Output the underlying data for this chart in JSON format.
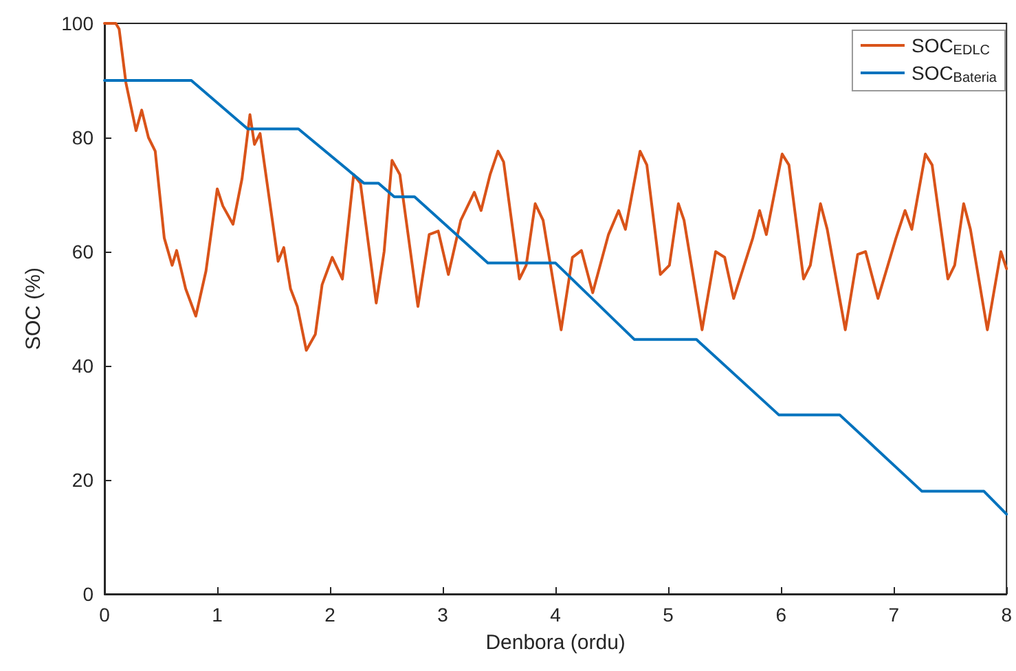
{
  "chart_data": {
    "type": "line",
    "xlabel": "Denbora (ordu)",
    "ylabel": "SOC (%)",
    "xlim": [
      0,
      8
    ],
    "xticks": [
      0,
      1,
      2,
      3,
      4,
      5,
      6,
      7,
      8
    ],
    "ylim": [
      0,
      100
    ],
    "yticks": [
      0,
      20,
      40,
      60,
      80,
      100
    ],
    "grid": false,
    "legend": "top right",
    "marker": "none",
    "line_style": "solid",
    "series": [
      {
        "name": "SOC$_{EDLC}$",
        "color": "#d95319",
        "x": [
          0,
          0.1,
          0.13,
          0.19,
          0.28,
          0.33,
          0.39,
          0.45,
          0.53,
          0.6,
          0.64,
          0.72,
          0.81,
          0.9,
          1.0,
          1.05,
          1.14,
          1.22,
          1.29,
          1.33,
          1.38,
          1.54,
          1.59,
          1.65,
          1.71,
          1.79,
          1.87,
          1.93,
          2.02,
          2.11,
          2.21,
          2.27,
          2.41,
          2.48,
          2.55,
          2.62,
          2.78,
          2.88,
          2.96,
          3.05,
          3.16,
          3.28,
          3.34,
          3.42,
          3.49,
          3.54,
          3.68,
          3.74,
          3.82,
          3.89,
          4.05,
          4.15,
          4.23,
          4.33,
          4.47,
          4.56,
          4.62,
          4.75,
          4.81,
          4.93,
          5.01,
          5.09,
          5.14,
          5.3,
          5.42,
          5.5,
          5.58,
          5.75,
          5.81,
          5.87,
          6.01,
          6.07,
          6.2,
          6.26,
          6.35,
          6.41,
          6.57,
          6.68,
          6.75,
          6.86,
          7.02,
          7.1,
          7.16,
          7.28,
          7.34,
          7.48,
          7.54,
          7.62,
          7.68,
          7.83,
          7.95,
          8.0
        ],
        "values": [
          100,
          100,
          99,
          89.6,
          81.2,
          84.8,
          80,
          77.6,
          62.4,
          57.6,
          60.2,
          53.5,
          48.7,
          56.6,
          71,
          68,
          64.8,
          72.8,
          84,
          78.8,
          80.7,
          58.3,
          60.7,
          53.5,
          50.4,
          42.7,
          45.5,
          54.2,
          59,
          55.2,
          73.5,
          72,
          51,
          60,
          76,
          73.5,
          50.4,
          63,
          63.6,
          56,
          65.5,
          70.4,
          67.2,
          73.5,
          77.6,
          75.7,
          55.2,
          57.6,
          68.4,
          65.5,
          46.3,
          59,
          60.2,
          52.8,
          63,
          67.2,
          63.9,
          77.6,
          75.2,
          56,
          57.6,
          68.4,
          65.5,
          46.3,
          60,
          59,
          51.8,
          62.4,
          67.2,
          63,
          77.1,
          75.2,
          55.2,
          57.6,
          68.4,
          63.9,
          46.3,
          59.5,
          60,
          51.8,
          62.4,
          67.2,
          63.9,
          77.1,
          75.2,
          55.2,
          57.6,
          68.4,
          63.9,
          46.3,
          60,
          57
        ]
      },
      {
        "name": "SOC$_{Bateria}$",
        "color": "#0072bd",
        "x": [
          0,
          0.77,
          1.27,
          1.72,
          2.3,
          2.43,
          2.57,
          2.75,
          3.4,
          4.0,
          4.7,
          5.25,
          5.98,
          6.52,
          7.25,
          7.8,
          8.0
        ],
        "values": [
          90,
          90,
          81.5,
          81.5,
          72,
          72,
          69.6,
          69.6,
          58,
          58,
          44.6,
          44.6,
          31.4,
          31.4,
          18,
          18,
          14
        ]
      }
    ]
  }
}
